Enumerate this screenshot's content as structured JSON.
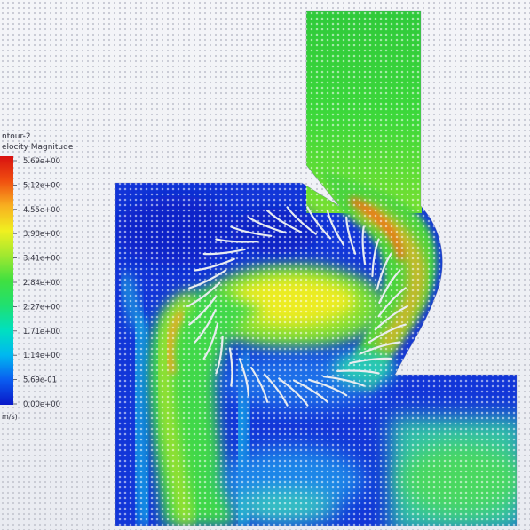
{
  "chart_data": {
    "type": "heatmap",
    "title": "",
    "legend": {
      "title_lines": [
        "ntour-2",
        "elocity Magnitude"
      ],
      "unit_label": "m/s)",
      "placement": "left",
      "ticks": [
        "5.69e+00",
        "5.12e+00",
        "4.55e+00",
        "3.98e+00",
        "3.41e+00",
        "2.84e+00",
        "2.27e+00",
        "1.71e+00",
        "1.14e+00",
        "5.69e-01",
        "0.00e+00"
      ],
      "tick_values": [
        5.69,
        5.12,
        4.55,
        3.98,
        3.41,
        2.84,
        2.27,
        1.71,
        1.14,
        0.569,
        0.0
      ],
      "range": [
        0.0,
        5.69
      ],
      "colormap": [
        "#0a18c8",
        "#0a5cf0",
        "#00b8f0",
        "#00e0c0",
        "#20e070",
        "#40e040",
        "#a0e830",
        "#f0f020",
        "#f8b020",
        "#f05010",
        "#d81010"
      ]
    },
    "field_description": "Velocity magnitude contour of flow through a cross-flow turbine runner",
    "colors": {
      "low": "#1030d0",
      "mid": "#30d840",
      "high": "#f8e020",
      "peak": "#e82010",
      "blade": "#e8ecf0"
    }
  }
}
